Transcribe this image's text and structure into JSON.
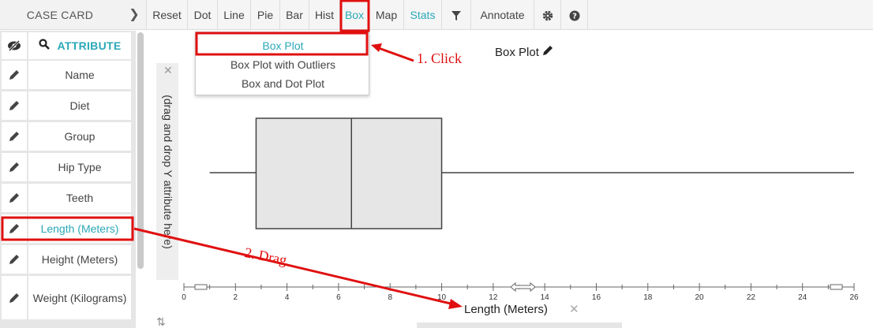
{
  "left_panel": {
    "title": "CASE CARD",
    "collapse_icon": "chevron-right-icon",
    "header_label": "ATTRIBUTE",
    "attributes": [
      {
        "label": "Name"
      },
      {
        "label": "Diet"
      },
      {
        "label": "Group"
      },
      {
        "label": "Hip Type"
      },
      {
        "label": "Teeth"
      },
      {
        "label": "Length (Meters)",
        "selected": true
      },
      {
        "label": "Height (Meters)"
      },
      {
        "label": "Weight (Kilograms)"
      }
    ]
  },
  "toolbar": {
    "buttons": [
      "Reset",
      "Dot",
      "Line",
      "Pie",
      "Bar",
      "Hist",
      "Box",
      "Map",
      "Stats",
      "Annotate"
    ],
    "active": "Box",
    "stats_color": "#2aa8b8"
  },
  "dropdown": {
    "items": [
      "Box Plot",
      "Box Plot with Outliers",
      "Box and Dot Plot"
    ],
    "highlighted": "Box Plot"
  },
  "plot": {
    "title": "Box Plot",
    "y_drop_hint": "(drag and drop Y attribute here)",
    "x_label": "Length (Meters)",
    "x_ticks": [
      "0",
      "2",
      "4",
      "6",
      "8",
      "10",
      "12",
      "14",
      "16",
      "18",
      "20",
      "22",
      "24",
      "26"
    ]
  },
  "chart_data": {
    "type": "box",
    "title": "Box Plot",
    "xlabel": "Length (Meters)",
    "ylabel": "",
    "xlim": [
      0,
      26
    ],
    "min": 1.0,
    "q1": 2.8,
    "median": 6.5,
    "q3": 10.0,
    "max": 26.0
  },
  "annotations": {
    "step1": "1. Click",
    "step2": "2. Drag",
    "highlight_color": "#e01010"
  }
}
